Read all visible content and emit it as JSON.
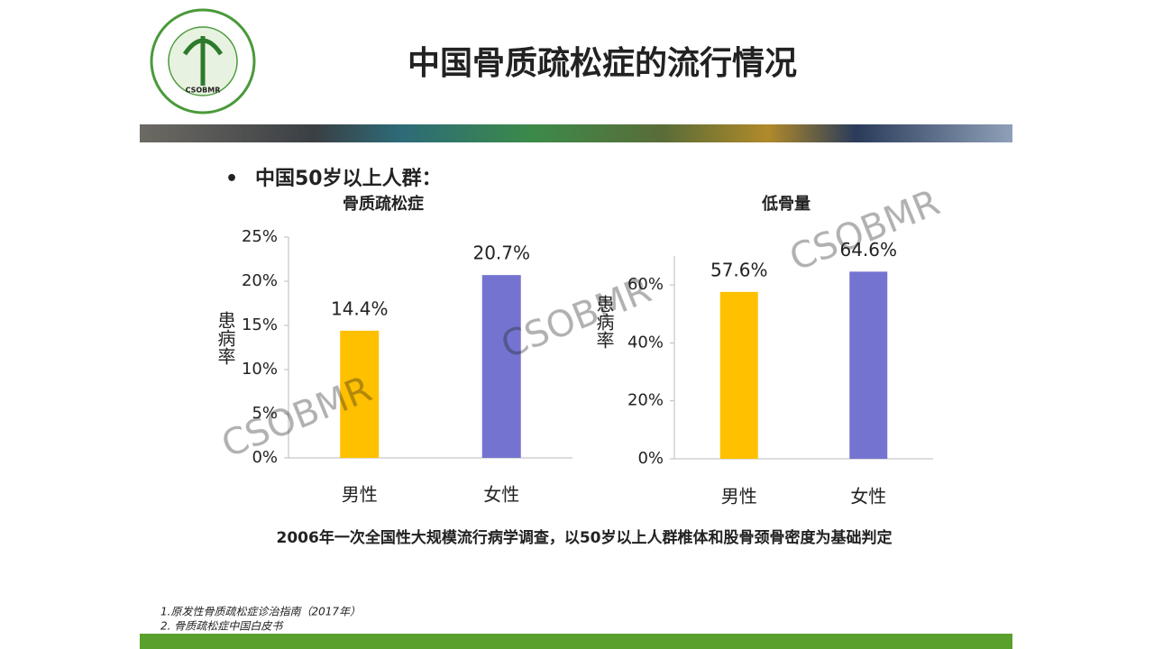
{
  "header": {
    "title": "中国骨质疏松症的流行情况",
    "logo_text": "CSOBMR"
  },
  "bullet": "中国50岁以上人群：",
  "watermark": "CSOBMR",
  "chart_data": [
    {
      "type": "bar",
      "title": "骨质疏松症",
      "y_label": "患病率",
      "categories": [
        "男性",
        "女性"
      ],
      "values": [
        14.4,
        20.7
      ],
      "value_labels": [
        "14.4%",
        "20.7%"
      ],
      "colors": [
        "#ffc000",
        "#7474d0"
      ],
      "ylim": [
        0,
        25
      ],
      "yticks": [
        {
          "value": 0,
          "label": "0%"
        },
        {
          "value": 5,
          "label": "5%"
        },
        {
          "value": 10,
          "label": "10%"
        },
        {
          "value": 15,
          "label": "15%"
        },
        {
          "value": 20,
          "label": "20%"
        },
        {
          "value": 25,
          "label": "25%"
        }
      ]
    },
    {
      "type": "bar",
      "title": "低骨量",
      "y_label": "患病率",
      "categories": [
        "男性",
        "女性"
      ],
      "values": [
        57.6,
        64.6
      ],
      "value_labels": [
        "57.6%",
        "64.6%"
      ],
      "colors": [
        "#ffc000",
        "#7474d0"
      ],
      "ylim": [
        0,
        70
      ],
      "yticks": [
        {
          "value": 0,
          "label": "0%"
        },
        {
          "value": 20,
          "label": "20%"
        },
        {
          "value": 40,
          "label": "40%"
        },
        {
          "value": 60,
          "label": "60%"
        }
      ]
    }
  ],
  "note": "2006年一次全国性大规模流行病学调查，以50岁以上人群椎体和股骨颈骨密度为基础判定",
  "references": [
    "1.原发性骨质疏松症诊治指南（2017年）",
    "2. 骨质疏松症中国白皮书"
  ]
}
